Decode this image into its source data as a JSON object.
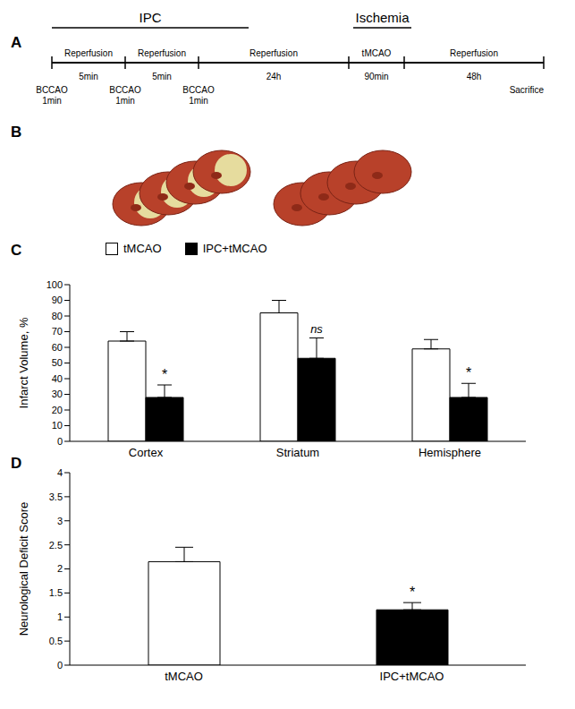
{
  "panel_labels": [
    "A",
    "B",
    "C",
    "D"
  ],
  "timeline": {
    "phases": [
      {
        "label": "IPC"
      },
      {
        "label": "Ischemia"
      }
    ],
    "segments": [
      {
        "label": "Reperfusion",
        "duration": "5min"
      },
      {
        "label": "Reperfusion",
        "duration": "5min"
      },
      {
        "label": "Reperfusion",
        "duration": "24h"
      },
      {
        "label": "tMCAO",
        "duration": "90min"
      },
      {
        "label": "Reperfusion",
        "duration": "48h"
      }
    ],
    "events": [
      {
        "label": "BCCAO",
        "duration": "1min"
      },
      {
        "label": "BCCAO",
        "duration": "1min"
      },
      {
        "label": "BCCAO",
        "duration": "1min"
      },
      {
        "label": "Sacrifice"
      }
    ]
  },
  "chart_data": [
    {
      "type": "bar",
      "y_label": "Infarct Volume, %",
      "categories": [
        "Cortex",
        "Striatum",
        "Hemisphere"
      ],
      "series": [
        {
          "name": "tMCAO",
          "color": "#ffffff",
          "values": [
            64,
            82,
            59
          ],
          "errors": [
            6,
            8,
            6
          ]
        },
        {
          "name": "IPC+tMCAO",
          "color": "#000000",
          "values": [
            28,
            53,
            28
          ],
          "errors": [
            8,
            13,
            9
          ],
          "annotations": [
            "*",
            "ns",
            "*"
          ]
        }
      ],
      "ylim": [
        0,
        100
      ],
      "yticks": [
        0,
        10,
        20,
        30,
        40,
        50,
        60,
        70,
        80,
        90,
        100
      ],
      "legend": "upper left"
    },
    {
      "type": "bar",
      "y_label": "Neurological Deficit Score",
      "categories": [
        "tMCAO",
        "IPC+tMCAO"
      ],
      "values": [
        2.15,
        1.15
      ],
      "errors": [
        0.3,
        0.15
      ],
      "colors": [
        "#ffffff",
        "#000000"
      ],
      "annotations": [
        null,
        "*"
      ],
      "ylim": [
        0,
        4
      ],
      "yticks": [
        0,
        0.5,
        1,
        1.5,
        2,
        2.5,
        3,
        3.5,
        4
      ]
    }
  ]
}
